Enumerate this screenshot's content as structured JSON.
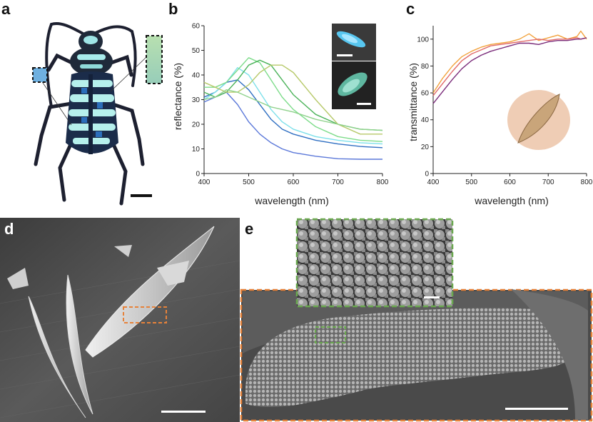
{
  "figure": {
    "panel_labels": {
      "a": "a",
      "b": "b",
      "c": "c",
      "d": "d",
      "e": "e"
    }
  },
  "chart_data": [
    {
      "panel": "b",
      "type": "line",
      "xlabel": "wavelength (nm)",
      "ylabel": "reflectance (%)",
      "xlim": [
        400,
        800
      ],
      "ylim": [
        0,
        60
      ],
      "xticks": [
        400,
        500,
        600,
        700,
        800
      ],
      "yticks": [
        0,
        10,
        20,
        30,
        40,
        50,
        60
      ],
      "grid": false,
      "x": [
        400,
        425,
        450,
        475,
        500,
        525,
        550,
        575,
        600,
        650,
        700,
        750,
        800
      ],
      "series": [
        {
          "color": "#5b78d9",
          "values": [
            29,
            31,
            33,
            28,
            21,
            16,
            12.5,
            10,
            8.5,
            7,
            6,
            5.8,
            5.8
          ]
        },
        {
          "color": "#2f6fc2",
          "values": [
            31,
            33,
            37,
            38,
            34,
            28,
            22,
            18,
            16,
            13.5,
            12,
            11,
            10.5
          ]
        },
        {
          "color": "#7de0ea",
          "values": [
            30,
            33,
            37,
            43,
            40,
            33,
            26,
            21,
            18,
            15,
            13.5,
            12.5,
            12
          ]
        },
        {
          "color": "#7ddc8a",
          "values": [
            35,
            35,
            37,
            42,
            47,
            45,
            38,
            31,
            26,
            19,
            15,
            13.5,
            13
          ]
        },
        {
          "color": "#4cb35a",
          "values": [
            33,
            31,
            33,
            38,
            44,
            46,
            44,
            38,
            32,
            24,
            20,
            18,
            17.5
          ]
        },
        {
          "color": "#b7c96a",
          "values": [
            37,
            35,
            33,
            33,
            36,
            41,
            44,
            44,
            41,
            30,
            20,
            16,
            16
          ]
        },
        {
          "color": "#8fd28c",
          "values": [
            30,
            31,
            34,
            33,
            31,
            29,
            27,
            26,
            25,
            22,
            20,
            18,
            17.5
          ]
        }
      ]
    },
    {
      "panel": "c",
      "type": "line",
      "xlabel": "wavelength (nm)",
      "ylabel": "transmittance (%)",
      "xlim": [
        400,
        800
      ],
      "ylim": [
        0,
        110
      ],
      "xticks": [
        400,
        500,
        600,
        700,
        800
      ],
      "yticks": [
        0,
        20,
        40,
        60,
        80,
        100
      ],
      "grid": false,
      "x": [
        400,
        425,
        450,
        475,
        500,
        525,
        550,
        575,
        600,
        625,
        650,
        675,
        700,
        725,
        750,
        775,
        785,
        800
      ],
      "series": [
        {
          "color": "#f2a23c",
          "values": [
            60,
            71,
            80,
            87,
            91,
            94,
            96,
            97,
            98,
            100,
            104,
            99,
            101,
            103,
            100,
            102,
            106,
            100
          ]
        },
        {
          "color": "#e06a6a",
          "values": [
            58,
            67,
            76,
            84,
            89,
            92,
            95,
            96,
            97,
            98,
            99,
            100,
            99,
            100,
            100,
            101,
            100,
            101
          ]
        },
        {
          "color": "#7a2c7a",
          "values": [
            52,
            61,
            70,
            78,
            84,
            88,
            91,
            93,
            95,
            97,
            97,
            96,
            98,
            99,
            99,
            100,
            100,
            101
          ]
        }
      ]
    }
  ],
  "insets": {
    "b_top_scale": "",
    "b_bottom_scale": ""
  },
  "colors": {
    "swatch_blue": "#6fb0e0",
    "swatch_green": "#a7d4a8",
    "inset_border_green": "#6aa84f",
    "box_orange": "#e6823a"
  }
}
